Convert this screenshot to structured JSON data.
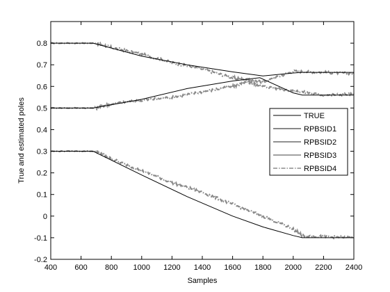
{
  "chart_data": {
    "type": "line",
    "title": "",
    "xlabel": "Samples",
    "ylabel": "True and estimated poles",
    "xlim": [
      400,
      2400
    ],
    "ylim": [
      -0.2,
      0.9
    ],
    "xticks": [
      "400",
      "600",
      "800",
      "1000",
      "1200",
      "1400",
      "1600",
      "1800",
      "2000",
      "2200",
      "2400"
    ],
    "yticks": [
      "-0.2",
      "-0.1",
      "0",
      "0.1",
      "0.2",
      "0.3",
      "0.4",
      "0.5",
      "0.6",
      "0.7",
      "0.8"
    ],
    "grid": false,
    "legend_position": "right",
    "series": [
      {
        "name": "TRUE",
        "color": "#000000",
        "style": "solid",
        "poles": [
          {
            "x": [
              400,
              680,
              1000,
              1300,
              1600,
              1800,
              2000,
              2060,
              2400
            ],
            "y": [
              0.8,
              0.8,
              0.74,
              0.7,
              0.667,
              0.648,
              0.662,
              0.665,
              0.665
            ]
          },
          {
            "x": [
              400,
              680,
              1000,
              1300,
              1600,
              1780,
              2000,
              2060,
              2400
            ],
            "y": [
              0.5,
              0.5,
              0.54,
              0.59,
              0.625,
              0.64,
              0.57,
              0.56,
              0.56
            ]
          },
          {
            "x": [
              400,
              680,
              1000,
              1300,
              1600,
              1800,
              2000,
              2060,
              2400
            ],
            "y": [
              0.3,
              0.3,
              0.19,
              0.09,
              0.0,
              -0.05,
              -0.09,
              -0.1,
              -0.1
            ]
          }
        ]
      },
      {
        "name": "RPBSID1",
        "color": "#111111",
        "style": "solid"
      },
      {
        "name": "RPBSID2",
        "color": "#222222",
        "style": "solid"
      },
      {
        "name": "RPBSID3",
        "color": "#000000",
        "style": "solid-thin"
      },
      {
        "name": "RPBSID4",
        "color": "#8a8a8a",
        "style": "dashdot",
        "poles": [
          {
            "x": [
              400,
              700,
              800,
              1000,
              1200,
              1400,
              1600,
              1700,
              1800,
              2000,
              2200,
              2400
            ],
            "y": [
              0.8,
              0.8,
              0.78,
              0.75,
              0.71,
              0.68,
              0.64,
              0.63,
              0.62,
              0.67,
              0.665,
              0.66
            ]
          },
          {
            "x": [
              400,
              700,
              800,
              1000,
              1200,
              1400,
              1600,
              1700,
              1800,
              2000,
              2200,
              2400
            ],
            "y": [
              0.5,
              0.5,
              0.52,
              0.535,
              0.55,
              0.575,
              0.6,
              0.62,
              0.6,
              0.58,
              0.56,
              0.565
            ]
          },
          {
            "x": [
              400,
              700,
              800,
              1000,
              1200,
              1400,
              1600,
              1800,
              2000,
              2060,
              2200,
              2400
            ],
            "y": [
              0.3,
              0.3,
              0.265,
              0.21,
              0.155,
              0.11,
              0.055,
              0.0,
              -0.06,
              -0.09,
              -0.095,
              -0.1
            ]
          }
        ]
      }
    ]
  }
}
